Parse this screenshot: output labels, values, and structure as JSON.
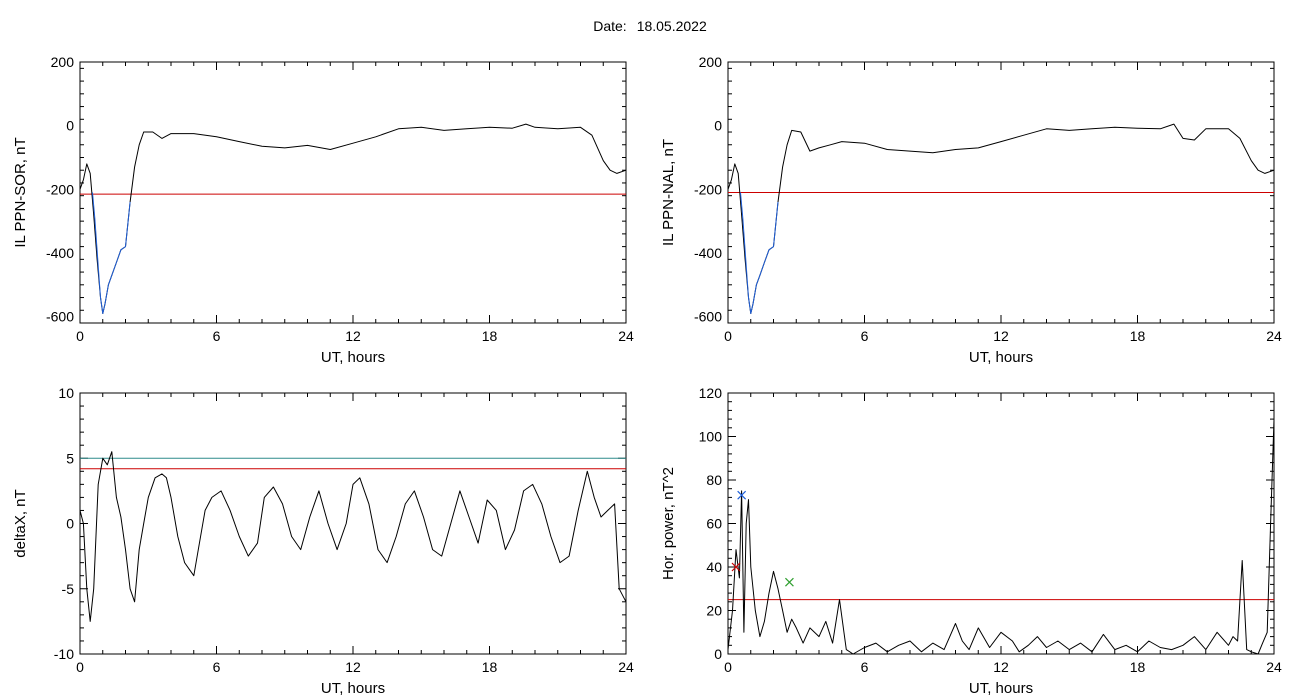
{
  "page": {
    "date_label": "Date:",
    "date_value": "18.05.2022"
  },
  "chart_data": [
    {
      "id": "panel_sor",
      "type": "line",
      "title": "",
      "xlabel": "UT, hours",
      "ylabel": "IL PPN-SOR, nT",
      "xlim": [
        0,
        24
      ],
      "ylim": [
        -620,
        200
      ],
      "xticks": [
        0,
        6,
        12,
        18,
        24
      ],
      "yticks": [
        -600,
        -400,
        -200,
        0,
        200
      ],
      "grid": false,
      "series": [
        {
          "role": "index",
          "color": "#000000",
          "x": [
            0,
            0.15,
            0.3,
            0.45,
            0.6,
            0.75,
            0.9,
            1.0,
            1.1,
            1.25,
            1.4,
            1.6,
            1.8,
            2.0,
            2.2,
            2.4,
            2.6,
            2.8,
            3.2,
            3.6,
            4.0,
            5,
            6,
            7,
            8,
            9,
            10,
            11,
            12,
            13,
            14,
            15,
            16,
            17,
            18,
            19,
            19.6,
            20,
            21,
            22,
            22.5,
            23,
            23.3,
            23.6,
            24
          ],
          "y": [
            -200,
            -170,
            -120,
            -150,
            -280,
            -420,
            -540,
            -590,
            -560,
            -500,
            -470,
            -430,
            -390,
            -380,
            -240,
            -130,
            -60,
            -20,
            -20,
            -40,
            -25,
            -25,
            -35,
            -50,
            -65,
            -70,
            -62,
            -75,
            -55,
            -35,
            -10,
            -5,
            -15,
            -10,
            -5,
            -8,
            5,
            -5,
            -10,
            -5,
            -30,
            -110,
            -140,
            -150,
            -140
          ]
        },
        {
          "role": "highlight",
          "color": "#1f5fd8",
          "x": [
            0.55,
            0.65,
            0.8,
            0.9,
            1.0,
            1.1,
            1.25,
            1.4,
            1.6,
            1.8,
            2.0,
            2.2
          ],
          "y": [
            -210,
            -290,
            -440,
            -540,
            -590,
            -560,
            -500,
            -470,
            -430,
            -390,
            -380,
            -240
          ]
        }
      ],
      "threshold": {
        "value": -215,
        "color": "#cc0000"
      }
    },
    {
      "id": "panel_nal",
      "type": "line",
      "title": "",
      "xlabel": "UT, hours",
      "ylabel": "IL PPN-NAL, nT",
      "xlim": [
        0,
        24
      ],
      "ylim": [
        -620,
        200
      ],
      "xticks": [
        0,
        6,
        12,
        18,
        24
      ],
      "yticks": [
        -600,
        -400,
        -200,
        0,
        200
      ],
      "grid": false,
      "series": [
        {
          "role": "index",
          "color": "#000000",
          "x": [
            0,
            0.15,
            0.3,
            0.45,
            0.6,
            0.75,
            0.9,
            1.0,
            1.1,
            1.25,
            1.4,
            1.6,
            1.8,
            2.0,
            2.2,
            2.4,
            2.6,
            2.8,
            3.2,
            3.6,
            4.0,
            4.5,
            5,
            6,
            7,
            8,
            9,
            10,
            11,
            12,
            13,
            14,
            15,
            16,
            17,
            18,
            19,
            19.6,
            20,
            20.5,
            21,
            22,
            22.5,
            23,
            23.3,
            23.6,
            24
          ],
          "y": [
            -200,
            -170,
            -120,
            -150,
            -280,
            -420,
            -540,
            -590,
            -560,
            -500,
            -470,
            -430,
            -390,
            -380,
            -240,
            -130,
            -60,
            -15,
            -20,
            -80,
            -70,
            -60,
            -50,
            -55,
            -75,
            -80,
            -85,
            -75,
            -70,
            -50,
            -30,
            -10,
            -15,
            -10,
            -5,
            -8,
            -10,
            5,
            -40,
            -45,
            -10,
            -10,
            -40,
            -110,
            -140,
            -150,
            -140
          ]
        },
        {
          "role": "highlight",
          "color": "#1f5fd8",
          "x": [
            0.55,
            0.65,
            0.8,
            0.9,
            1.0,
            1.1,
            1.25,
            1.4,
            1.6,
            1.8,
            2.0,
            2.2
          ],
          "y": [
            -210,
            -290,
            -440,
            -540,
            -590,
            -560,
            -500,
            -470,
            -430,
            -390,
            -380,
            -240
          ]
        }
      ],
      "threshold": {
        "value": -210,
        "color": "#cc0000"
      }
    },
    {
      "id": "panel_deltax",
      "type": "line",
      "title": "",
      "xlabel": "UT, hours",
      "ylabel": "deltaX, nT",
      "xlim": [
        0,
        24
      ],
      "ylim": [
        -10,
        10
      ],
      "xticks": [
        0,
        6,
        12,
        18,
        24
      ],
      "yticks": [
        -10,
        -5,
        0,
        5,
        10
      ],
      "grid": false,
      "series": [
        {
          "role": "deltax",
          "color": "#000000",
          "x": [
            0,
            0.15,
            0.3,
            0.45,
            0.6,
            0.8,
            1.0,
            1.2,
            1.4,
            1.6,
            1.8,
            2.0,
            2.2,
            2.4,
            2.6,
            2.8,
            3.0,
            3.3,
            3.6,
            3.8,
            4.0,
            4.3,
            4.6,
            4.8,
            5.0,
            5.2,
            5.5,
            5.8,
            6.2,
            6.6,
            7.0,
            7.4,
            7.8,
            8.1,
            8.5,
            8.9,
            9.3,
            9.7,
            10.1,
            10.5,
            10.9,
            11.3,
            11.7,
            12.0,
            12.3,
            12.7,
            13.1,
            13.5,
            13.9,
            14.3,
            14.7,
            15.1,
            15.5,
            15.9,
            16.3,
            16.7,
            17.1,
            17.5,
            17.9,
            18.3,
            18.7,
            19.1,
            19.5,
            19.9,
            20.3,
            20.7,
            21.1,
            21.5,
            21.9,
            22.3,
            22.6,
            22.9,
            23.2,
            23.5,
            23.7,
            24.0
          ],
          "y": [
            1,
            0,
            -5,
            -7.5,
            -5,
            3,
            5,
            4.5,
            5.5,
            2,
            0.5,
            -2,
            -5,
            -6,
            -2,
            0,
            2,
            3.5,
            3.8,
            3.5,
            2,
            -1,
            -3,
            -3.5,
            -4,
            -2,
            1,
            2,
            2.5,
            1,
            -1,
            -2.5,
            -1.5,
            2,
            2.8,
            1.5,
            -1,
            -2,
            0.5,
            2.5,
            0,
            -2,
            0,
            3,
            3.5,
            1.5,
            -2,
            -3,
            -1,
            1.5,
            2.5,
            0.5,
            -2,
            -2.5,
            0,
            2.5,
            0.5,
            -1.5,
            1.8,
            1,
            -2,
            -0.5,
            2.5,
            3,
            1.5,
            -1,
            -3,
            -2.5,
            1,
            4,
            2,
            0.5,
            1,
            1.5,
            -5,
            -6
          ]
        }
      ],
      "thresholds": [
        {
          "value": 5,
          "color": "#2e8b8b"
        },
        {
          "value": 4.2,
          "color": "#cc0000"
        }
      ]
    },
    {
      "id": "panel_power",
      "type": "line",
      "title": "",
      "xlabel": "UT, hours",
      "ylabel": "Hor. power, nT^2",
      "xlim": [
        0,
        24
      ],
      "ylim": [
        0,
        120
      ],
      "xticks": [
        0,
        6,
        12,
        18,
        24
      ],
      "yticks": [
        0,
        20,
        40,
        60,
        80,
        100,
        120
      ],
      "grid": false,
      "series": [
        {
          "role": "power",
          "color": "#000000",
          "x": [
            0,
            0.2,
            0.35,
            0.5,
            0.6,
            0.7,
            0.8,
            0.9,
            1.0,
            1.2,
            1.4,
            1.6,
            1.8,
            2.0,
            2.2,
            2.4,
            2.6,
            2.8,
            3.0,
            3.3,
            3.6,
            4.0,
            4.3,
            4.6,
            4.9,
            5.2,
            5.5,
            6.0,
            6.5,
            7.0,
            7.5,
            8.0,
            8.5,
            9.0,
            9.5,
            10.0,
            10.3,
            10.6,
            11.0,
            11.5,
            12.0,
            12.5,
            12.8,
            13.2,
            13.6,
            14.0,
            14.5,
            15.0,
            15.5,
            16.0,
            16.5,
            17.0,
            17.5,
            18.0,
            18.5,
            19.0,
            19.5,
            20.0,
            20.5,
            21.0,
            21.5,
            22.0,
            22.2,
            22.4,
            22.6,
            22.8,
            23.0,
            23.3,
            23.5,
            23.7,
            23.85,
            24.0
          ],
          "y": [
            2,
            20,
            48,
            35,
            75,
            10,
            60,
            71,
            40,
            20,
            8,
            15,
            28,
            38,
            30,
            20,
            10,
            16,
            12,
            5,
            12,
            8,
            15,
            5,
            25,
            2,
            0,
            3,
            5,
            1,
            4,
            6,
            1,
            5,
            2,
            14,
            6,
            2,
            12,
            3,
            10,
            6,
            1,
            4,
            8,
            3,
            6,
            2,
            5,
            1,
            9,
            2,
            4,
            1,
            6,
            3,
            2,
            4,
            8,
            2,
            10,
            4,
            8,
            6,
            43,
            2,
            1,
            0,
            5,
            10,
            60,
            108
          ]
        }
      ],
      "threshold": {
        "value": 25,
        "color": "#cc0000"
      },
      "markers": [
        {
          "x": 0.35,
          "y": 40,
          "symbol": "x",
          "color": "#cc0000"
        },
        {
          "x": 0.6,
          "y": 73,
          "symbol": "x",
          "color": "#1f5fd8"
        },
        {
          "x": 2.7,
          "y": 33,
          "symbol": "x",
          "color": "#2e9e2e"
        }
      ]
    }
  ]
}
